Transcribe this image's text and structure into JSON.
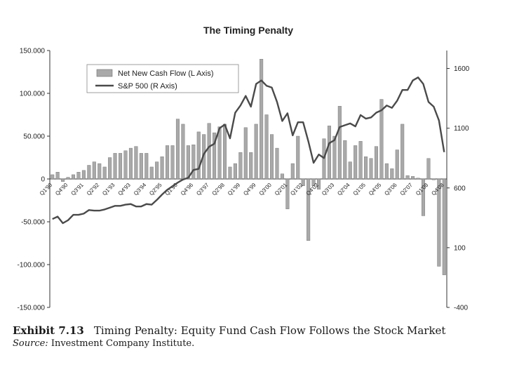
{
  "caption": {
    "exhibit_label": "Exhibit  7.13",
    "exhibit_title": "Timing Penalty: Equity Fund Cash Flow Follows the Stock Market",
    "source_label": "Source:",
    "source_text": "Investment Company Institute."
  },
  "colors": {
    "bar": "#a9a9a9",
    "bar_stroke": "#6f6f6f",
    "line": "#4a4a4a",
    "axis": "#333333",
    "text": "#222222"
  },
  "chart_data": {
    "type": "bar",
    "title": "The Timing Penalty",
    "xlabel": "",
    "ylabel": "",
    "ylim": [
      -150000,
      150000
    ],
    "yticks": [
      -150000,
      -100000,
      -50000,
      0,
      50000,
      100000,
      150000
    ],
    "ytick_labels": [
      "-150.000",
      "-100.000",
      "-50.000",
      "0",
      "50.000",
      "100.000",
      "150.000"
    ],
    "y2lim": [
      -400,
      1750
    ],
    "y2ticks": [
      -400,
      100,
      600,
      1100,
      1600
    ],
    "y2tick_labels": [
      "-400",
      "100",
      "600",
      "1100",
      "1600"
    ],
    "legend": [
      "Net New Cash Flow (L Axis)",
      "S&P 500 (R Axis)"
    ],
    "legend_position": "top-center",
    "categories": [
      "Q1'90",
      "Q2'90",
      "Q3'90",
      "Q4'90",
      "Q1'91",
      "Q2'91",
      "Q3'91",
      "Q4'91",
      "Q1'92",
      "Q2'92",
      "Q3'92",
      "Q4'92",
      "Q1'93",
      "Q2'93",
      "Q3'93",
      "Q4'93",
      "Q1'94",
      "Q2'94",
      "Q3'94",
      "Q4'94",
      "Q1'95",
      "Q2'95",
      "Q3'95",
      "Q4'95",
      "Q1'96",
      "Q2'96",
      "Q3'96",
      "Q4'96",
      "Q1'97",
      "Q2'97",
      "Q3'97",
      "Q4'97",
      "Q1'98",
      "Q2'98",
      "Q3'98",
      "Q4'98",
      "Q1'99",
      "Q2'99",
      "Q3'99",
      "Q4'99",
      "Q1'00",
      "Q2'00",
      "Q3'00",
      "Q4'00",
      "Q1'01",
      "Q2'01",
      "Q3'01",
      "Q4'01",
      "Q1'02",
      "Q2'02",
      "Q3'02",
      "Q4'02",
      "Q1'03",
      "Q2'03",
      "Q3'03",
      "Q4'03",
      "Q1'04",
      "Q2'04",
      "Q3'04",
      "Q4'04",
      "Q1'05",
      "Q2'05",
      "Q3'05",
      "Q4'05",
      "Q1'06",
      "Q2'06",
      "Q3'06",
      "Q4'06",
      "Q1'07",
      "Q2'07",
      "Q3'07",
      "Q4'07",
      "Q1'08",
      "Q2'08",
      "Q3'08",
      "Q4'08"
    ],
    "x_tick_labels": [
      {
        "index": 0,
        "label": "Q1'90"
      },
      {
        "index": 3,
        "label": "Q4'90"
      },
      {
        "index": 6,
        "label": "Q3'91"
      },
      {
        "index": 9,
        "label": "Q2'92"
      },
      {
        "index": 12,
        "label": "Q1'93"
      },
      {
        "index": 15,
        "label": "Q4'93"
      },
      {
        "index": 18,
        "label": "Q3'94"
      },
      {
        "index": 21,
        "label": "Q2'95"
      },
      {
        "index": 24,
        "label": "Q1'96"
      },
      {
        "index": 27,
        "label": "Q4'96"
      },
      {
        "index": 30,
        "label": "Q3'97"
      },
      {
        "index": 33,
        "label": "Q2'98"
      },
      {
        "index": 36,
        "label": "Q1'99"
      },
      {
        "index": 39,
        "label": "Q4'99"
      },
      {
        "index": 42,
        "label": "Q3'00"
      },
      {
        "index": 45,
        "label": "Q2'01"
      },
      {
        "index": 48,
        "label": "Q1'02"
      },
      {
        "index": 51,
        "label": "Q4'02"
      },
      {
        "index": 54,
        "label": "Q3'03"
      },
      {
        "index": 57,
        "label": "Q2'04"
      },
      {
        "index": 60,
        "label": "Q1'05"
      },
      {
        "index": 63,
        "label": "Q4'05"
      },
      {
        "index": 66,
        "label": "Q3'06"
      },
      {
        "index": 69,
        "label": "Q2'07"
      },
      {
        "index": 72,
        "label": "Q1'08"
      },
      {
        "index": 75,
        "label": "Q4'08"
      }
    ],
    "series": [
      {
        "name": "Net New Cash Flow (L Axis)",
        "type": "bar",
        "axis": "left",
        "values": [
          5000,
          8000,
          -3000,
          2000,
          5000,
          8000,
          10000,
          16000,
          20000,
          18000,
          14000,
          25000,
          30000,
          30000,
          33000,
          36000,
          38000,
          30000,
          30000,
          14000,
          20000,
          26000,
          39000,
          39000,
          70000,
          64000,
          39000,
          40000,
          55000,
          52000,
          65000,
          54000,
          61000,
          64000,
          14000,
          18000,
          31000,
          60000,
          31000,
          64000,
          140000,
          75000,
          52000,
          36000,
          6000,
          -35000,
          18000,
          50000,
          -8000,
          -72000,
          -8000,
          -12000,
          47000,
          62000,
          50000,
          85000,
          45000,
          20000,
          39000,
          44000,
          26000,
          24000,
          38000,
          93000,
          18000,
          12000,
          34000,
          64000,
          4000,
          3000,
          1000,
          -43000,
          24000,
          -1000,
          -102000,
          -112000
        ]
      },
      {
        "name": "S&P 500 (R Axis)",
        "type": "line",
        "axis": "right",
        "values": [
          340,
          360,
          305,
          330,
          375,
          375,
          385,
          415,
          410,
          410,
          420,
          435,
          450,
          450,
          460,
          465,
          445,
          445,
          465,
          460,
          500,
          545,
          585,
          615,
          645,
          670,
          685,
          750,
          760,
          885,
          945,
          970,
          1100,
          1130,
          1015,
          1230,
          1290,
          1370,
          1280,
          1470,
          1500,
          1455,
          1440,
          1320,
          1160,
          1225,
          1040,
          1150,
          1150,
          990,
          810,
          880,
          850,
          975,
          1000,
          1110,
          1125,
          1140,
          1115,
          1210,
          1180,
          1190,
          1230,
          1250,
          1290,
          1270,
          1330,
          1420,
          1420,
          1500,
          1525,
          1470,
          1320,
          1280,
          1165,
          900
        ]
      }
    ]
  }
}
